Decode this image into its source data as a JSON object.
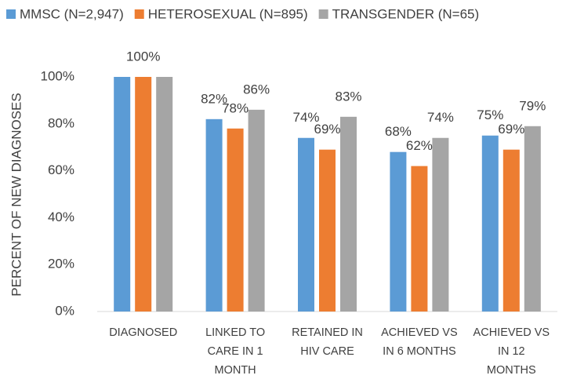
{
  "chart_data": {
    "type": "bar",
    "y_label": "PERCENT OF NEW DIAGNOSES",
    "categories": [
      [
        "DIAGNOSED"
      ],
      [
        "LINKED TO",
        "CARE IN 1",
        "MONTH"
      ],
      [
        "RETAINED IN",
        "HIV CARE"
      ],
      [
        "ACHIEVED VS",
        "IN 6 MONTHS"
      ],
      [
        "ACHIEVED VS",
        "IN 12",
        "MONTHS"
      ]
    ],
    "series": [
      {
        "name": "MMSC (N=2,947)",
        "color": "#5b9bd5",
        "values": [
          100,
          82,
          74,
          68,
          75
        ],
        "value_labels": [
          null,
          "82%",
          "74%",
          "68%",
          "75%"
        ]
      },
      {
        "name": "HETEROSEXUAL (N=895)",
        "color": "#ed7d31",
        "values": [
          100,
          78,
          69,
          62,
          69
        ],
        "value_labels": [
          "100%",
          "78%",
          "69%",
          "62%",
          "69%"
        ]
      },
      {
        "name": "TRANSGENDER (N=65)",
        "color": "#a5a5a5",
        "values": [
          100,
          86,
          83,
          74,
          79
        ],
        "value_labels": [
          null,
          "86%",
          "83%",
          "74%",
          "79%"
        ]
      }
    ],
    "ylim": [
      0,
      100
    ],
    "yticks": [
      {
        "value": 0,
        "label": "0%"
      },
      {
        "value": 20,
        "label": "20%"
      },
      {
        "value": 40,
        "label": "40%"
      },
      {
        "value": 60,
        "label": "60%"
      },
      {
        "value": 80,
        "label": "80%"
      },
      {
        "value": 100,
        "label": "100%"
      }
    ],
    "legend": "top"
  }
}
